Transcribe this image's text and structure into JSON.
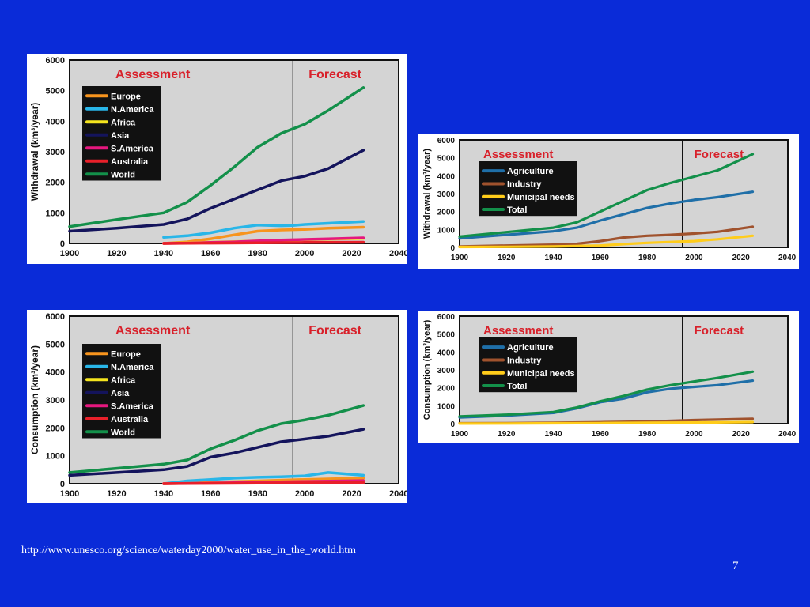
{
  "slide": {
    "url": "http://www.unesco.org/science/waterday2000/water_use_in_the_world.htm",
    "page_number": "7",
    "colors": {
      "background": "#0a2bd8",
      "plot_background": "#d4d4d4",
      "assessment": "#d8202a",
      "forecast": "#d8202a"
    }
  },
  "chart_data": [
    {
      "type": "line",
      "ylabel": "Withdrawal (km³/year)",
      "assessment_label": "Assessment",
      "forecast_label": "Forecast",
      "divider_year": 1995,
      "xlim": [
        1900,
        2040
      ],
      "ylim": [
        0,
        6000
      ],
      "xticks": [
        "1900",
        "1920",
        "1940",
        "1960",
        "1980",
        "2000",
        "2020",
        "2040"
      ],
      "yticks": [
        "0",
        "1000",
        "2000",
        "3000",
        "4000",
        "5000",
        "6000"
      ],
      "grid": false,
      "legend_position": "top-left",
      "series": [
        {
          "name": "Europe",
          "color": "#f7941d",
          "x": [
            1940,
            1950,
            1960,
            1970,
            1980,
            1990,
            1995,
            2000,
            2010,
            2025
          ],
          "y": [
            0,
            50,
            150,
            280,
            400,
            440,
            450,
            460,
            500,
            530
          ]
        },
        {
          "name": "N.America",
          "color": "#29b6e8",
          "x": [
            1940,
            1950,
            1960,
            1970,
            1980,
            1990,
            1995,
            2000,
            2010,
            2025
          ],
          "y": [
            200,
            250,
            350,
            500,
            600,
            580,
            590,
            620,
            660,
            720
          ]
        },
        {
          "name": "Africa",
          "color": "#f5e51e",
          "x": [
            1940,
            1950,
            1960,
            1970,
            1980,
            1990,
            1995,
            2000,
            2010,
            2025
          ],
          "y": [
            0,
            20,
            40,
            60,
            80,
            100,
            110,
            120,
            140,
            160
          ]
        },
        {
          "name": "Asia",
          "color": "#14145c",
          "x": [
            1900,
            1920,
            1940,
            1950,
            1960,
            1970,
            1980,
            1990,
            2000,
            2010,
            2025
          ],
          "y": [
            400,
            500,
            620,
            800,
            1150,
            1450,
            1750,
            2050,
            2200,
            2450,
            3050
          ]
        },
        {
          "name": "S.America",
          "color": "#e5177e",
          "x": [
            1940,
            1950,
            1960,
            1970,
            1980,
            1990,
            2000,
            2010,
            2025
          ],
          "y": [
            0,
            10,
            30,
            50,
            80,
            110,
            130,
            150,
            180
          ]
        },
        {
          "name": "Australia",
          "color": "#e8202a",
          "x": [
            1940,
            1960,
            1980,
            2000,
            2025
          ],
          "y": [
            0,
            10,
            20,
            30,
            40
          ]
        },
        {
          "name": "World",
          "color": "#13904a",
          "x": [
            1900,
            1920,
            1940,
            1950,
            1960,
            1970,
            1980,
            1990,
            2000,
            2010,
            2025
          ],
          "y": [
            550,
            780,
            1000,
            1350,
            1900,
            2500,
            3150,
            3600,
            3900,
            4350,
            5100
          ]
        }
      ]
    },
    {
      "type": "line",
      "ylabel": "Consumption (km³/year)",
      "assessment_label": "Assessment",
      "forecast_label": "Forecast",
      "divider_year": 1995,
      "xlim": [
        1900,
        2040
      ],
      "ylim": [
        0,
        6000
      ],
      "xticks": [
        "1900",
        "1920",
        "1940",
        "1960",
        "1980",
        "2000",
        "2020",
        "2040"
      ],
      "yticks": [
        "0",
        "1000",
        "2000",
        "3000",
        "4000",
        "5000",
        "6000"
      ],
      "grid": false,
      "legend_position": "top-left",
      "series": [
        {
          "name": "Europe",
          "color": "#f7941d",
          "x": [
            1940,
            1960,
            1980,
            2000,
            2010,
            2025
          ],
          "y": [
            0,
            50,
            100,
            150,
            170,
            200
          ]
        },
        {
          "name": "N.America",
          "color": "#29b6e8",
          "x": [
            1940,
            1950,
            1960,
            1970,
            1980,
            1990,
            2000,
            2010,
            2025
          ],
          "y": [
            0,
            100,
            150,
            200,
            230,
            250,
            280,
            400,
            300
          ]
        },
        {
          "name": "Africa",
          "color": "#f5e51e",
          "x": [
            1940,
            1960,
            1980,
            2000,
            2025
          ],
          "y": [
            0,
            20,
            40,
            60,
            90
          ]
        },
        {
          "name": "Asia",
          "color": "#14145c",
          "x": [
            1900,
            1920,
            1940,
            1950,
            1960,
            1970,
            1980,
            1990,
            2000,
            2010,
            2025
          ],
          "y": [
            300,
            400,
            500,
            620,
            950,
            1100,
            1300,
            1500,
            1600,
            1700,
            1950
          ]
        },
        {
          "name": "S.America",
          "color": "#e5177e",
          "x": [
            1940,
            1960,
            1980,
            2000,
            2025
          ],
          "y": [
            0,
            20,
            50,
            80,
            110
          ]
        },
        {
          "name": "Australia",
          "color": "#e8202a",
          "x": [
            1940,
            1960,
            1980,
            2000,
            2025
          ],
          "y": [
            0,
            10,
            20,
            30,
            40
          ]
        },
        {
          "name": "World",
          "color": "#13904a",
          "x": [
            1900,
            1920,
            1940,
            1950,
            1960,
            1970,
            1980,
            1990,
            2000,
            2010,
            2025
          ],
          "y": [
            400,
            550,
            700,
            850,
            1250,
            1550,
            1900,
            2150,
            2280,
            2450,
            2800
          ]
        }
      ]
    },
    {
      "type": "line",
      "ylabel": "Withdrawal (km³/year)",
      "assessment_label": "Assessment",
      "forecast_label": "Forecast",
      "divider_year": 1995,
      "xlim": [
        1900,
        2040
      ],
      "ylim": [
        0,
        6000
      ],
      "xticks": [
        "1900",
        "1920",
        "1940",
        "1960",
        "1980",
        "2000",
        "2020",
        "2040"
      ],
      "yticks": [
        "0",
        "1000",
        "2000",
        "3000",
        "4000",
        "5000",
        "6000"
      ],
      "grid": false,
      "legend_position": "top-left",
      "series": [
        {
          "name": "Agriculture",
          "color": "#1f6fa8",
          "x": [
            1900,
            1920,
            1940,
            1950,
            1960,
            1970,
            1980,
            1990,
            2000,
            2010,
            2025
          ],
          "y": [
            500,
            700,
            900,
            1100,
            1500,
            1850,
            2200,
            2450,
            2650,
            2800,
            3100
          ]
        },
        {
          "name": "Industry",
          "color": "#a0522d",
          "x": [
            1900,
            1920,
            1940,
            1950,
            1960,
            1970,
            1980,
            1990,
            2000,
            2010,
            2025
          ],
          "y": [
            50,
            100,
            150,
            200,
            350,
            550,
            650,
            700,
            770,
            870,
            1150
          ]
        },
        {
          "name": "Municipal needs",
          "color": "#ffcc1a",
          "x": [
            1900,
            1920,
            1940,
            1960,
            1970,
            1980,
            1990,
            2000,
            2010,
            2025
          ],
          "y": [
            20,
            30,
            50,
            100,
            180,
            250,
            300,
            350,
            450,
            650
          ]
        },
        {
          "name": "Total",
          "color": "#13904a",
          "x": [
            1900,
            1920,
            1940,
            1950,
            1960,
            1970,
            1980,
            1990,
            2000,
            2010,
            2025
          ],
          "y": [
            600,
            850,
            1100,
            1400,
            2000,
            2600,
            3200,
            3600,
            3950,
            4300,
            5200
          ]
        }
      ]
    },
    {
      "type": "line",
      "ylabel": "Consumption (km³/year)",
      "assessment_label": "Assessment",
      "forecast_label": "Forecast",
      "divider_year": 1995,
      "xlim": [
        1900,
        2040
      ],
      "ylim": [
        0,
        6000
      ],
      "xticks": [
        "1900",
        "1920",
        "1940",
        "1960",
        "1980",
        "2000",
        "2020",
        "2040"
      ],
      "yticks": [
        "0",
        "1000",
        "2000",
        "3000",
        "4000",
        "5000",
        "6000"
      ],
      "grid": false,
      "legend_position": "top-left",
      "series": [
        {
          "name": "Agriculture",
          "color": "#1f6fa8",
          "x": [
            1900,
            1920,
            1940,
            1950,
            1960,
            1970,
            1980,
            1990,
            2000,
            2010,
            2025
          ],
          "y": [
            350,
            450,
            600,
            850,
            1200,
            1400,
            1750,
            1950,
            2050,
            2150,
            2400
          ]
        },
        {
          "name": "Industry",
          "color": "#a0522d",
          "x": [
            1900,
            1920,
            1940,
            1960,
            1980,
            2000,
            2010,
            2025
          ],
          "y": [
            20,
            30,
            50,
            80,
            120,
            200,
            230,
            270
          ]
        },
        {
          "name": "Municipal needs",
          "color": "#ffcc1a",
          "x": [
            1900,
            1920,
            1940,
            1960,
            1980,
            2000,
            2025
          ],
          "y": [
            5,
            10,
            20,
            30,
            50,
            60,
            90
          ]
        },
        {
          "name": "Total",
          "color": "#13904a",
          "x": [
            1900,
            1920,
            1940,
            1950,
            1960,
            1970,
            1980,
            1990,
            2000,
            2010,
            2025
          ],
          "y": [
            400,
            500,
            650,
            900,
            1250,
            1550,
            1900,
            2150,
            2350,
            2550,
            2900
          ]
        }
      ]
    }
  ]
}
